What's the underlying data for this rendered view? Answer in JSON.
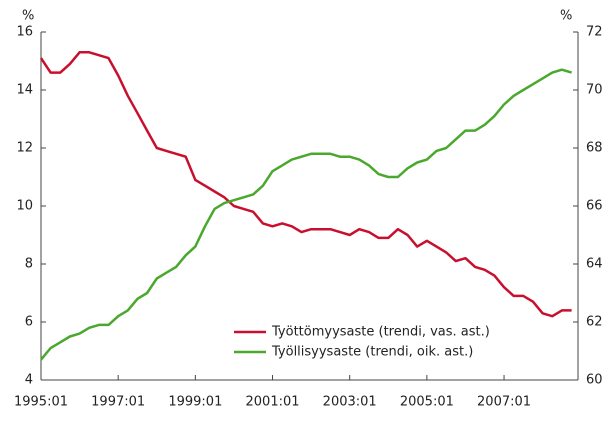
{
  "chart_data": {
    "type": "line",
    "y_label": "%",
    "y2_label": "%",
    "x": [
      "1995:01",
      "1995:04",
      "1995:07",
      "1995:10",
      "1996:01",
      "1996:04",
      "1996:07",
      "1996:10",
      "1997:01",
      "1997:04",
      "1997:07",
      "1997:10",
      "1998:01",
      "1998:04",
      "1998:07",
      "1998:10",
      "1999:01",
      "1999:04",
      "1999:07",
      "1999:10",
      "2000:01",
      "2000:04",
      "2000:07",
      "2000:10",
      "2001:01",
      "2001:04",
      "2001:07",
      "2001:10",
      "2002:01",
      "2002:04",
      "2002:07",
      "2002:10",
      "2003:01",
      "2003:04",
      "2003:07",
      "2003:10",
      "2004:01",
      "2004:04",
      "2004:07",
      "2004:10",
      "2005:01",
      "2005:04",
      "2005:07",
      "2005:10",
      "2006:01",
      "2006:04",
      "2006:07",
      "2006:10",
      "2007:01",
      "2007:04",
      "2007:07",
      "2007:10",
      "2008:01",
      "2008:04",
      "2008:07",
      "2008:10"
    ],
    "xlim": [
      "1995:01",
      "2008:12"
    ],
    "xticks": [
      "1995:01",
      "1997:01",
      "1999:01",
      "2001:01",
      "2003:01",
      "2005:01",
      "2007:01"
    ],
    "series": [
      {
        "name": "Työttömyysaste (trendi, vas. ast.)",
        "color": "#c8102e",
        "axis": "y",
        "values": [
          15.1,
          14.6,
          14.6,
          14.9,
          15.3,
          15.3,
          15.2,
          15.1,
          14.5,
          13.8,
          13.2,
          12.6,
          12.0,
          11.9,
          11.8,
          11.7,
          10.9,
          10.7,
          10.5,
          10.3,
          10.0,
          9.9,
          9.8,
          9.4,
          9.3,
          9.4,
          9.3,
          9.1,
          9.2,
          9.2,
          9.2,
          9.1,
          9.0,
          9.2,
          9.1,
          8.9,
          8.9,
          9.2,
          9.0,
          8.6,
          8.8,
          8.6,
          8.4,
          8.1,
          8.2,
          7.9,
          7.8,
          7.6,
          7.2,
          6.9,
          6.9,
          6.7,
          6.3,
          6.2,
          6.4,
          6.4
        ]
      },
      {
        "name": "Työllisyysaste (trendi, oik. ast.)",
        "color": "#4aa82e",
        "axis": "y2",
        "values": [
          60.7,
          61.1,
          61.3,
          61.5,
          61.6,
          61.8,
          61.9,
          61.9,
          62.2,
          62.4,
          62.8,
          63.0,
          63.5,
          63.7,
          63.9,
          64.3,
          64.6,
          65.3,
          65.9,
          66.1,
          66.2,
          66.3,
          66.4,
          66.7,
          67.2,
          67.4,
          67.6,
          67.7,
          67.8,
          67.8,
          67.8,
          67.7,
          67.7,
          67.6,
          67.4,
          67.1,
          67.0,
          67.0,
          67.3,
          67.5,
          67.6,
          67.9,
          68.0,
          68.3,
          68.6,
          68.6,
          68.8,
          69.1,
          69.5,
          69.8,
          70.0,
          70.2,
          70.4,
          70.6,
          70.7,
          70.6
        ]
      }
    ],
    "ylim": [
      4,
      16
    ],
    "yticks": [
      4,
      6,
      8,
      10,
      12,
      14,
      16
    ],
    "y2lim": [
      60,
      72
    ],
    "y2ticks": [
      60,
      62,
      64,
      66,
      68,
      70,
      72
    ],
    "legend": "lower right"
  }
}
